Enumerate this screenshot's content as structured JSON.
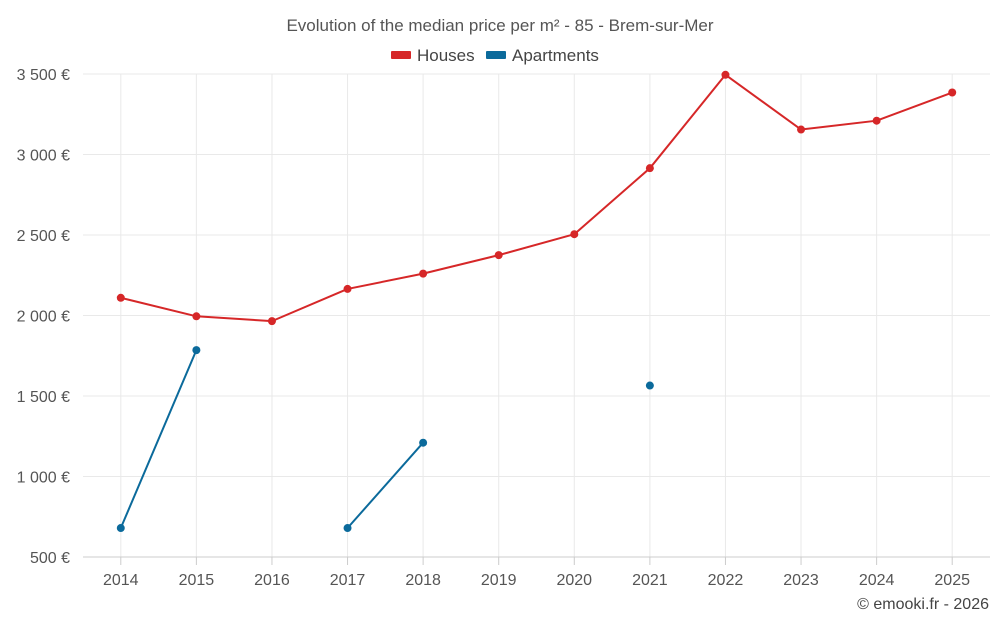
{
  "chart_data": {
    "type": "line",
    "title": "Evolution of the median price per m² - 85 - Brem-sur-Mer",
    "categories": [
      "2014",
      "2015",
      "2016",
      "2017",
      "2018",
      "2019",
      "2020",
      "2021",
      "2022",
      "2023",
      "2024",
      "2025"
    ],
    "series": [
      {
        "name": "Houses",
        "color": "#d62728",
        "values": [
          2110,
          1995,
          1965,
          2165,
          2260,
          2375,
          2505,
          2915,
          3495,
          3155,
          3210,
          3385
        ]
      },
      {
        "name": "Apartments",
        "color": "#0b6a9b",
        "values": [
          680,
          1785,
          null,
          680,
          1210,
          null,
          null,
          1565,
          null,
          null,
          null,
          null
        ]
      }
    ],
    "ylim": [
      500,
      3500
    ],
    "yticks": [
      500,
      1000,
      1500,
      2000,
      2500,
      3000,
      3500
    ],
    "ytick_labels": [
      "500 €",
      "1 000 €",
      "1 500 €",
      "2 000 €",
      "2 500 €",
      "3 000 €",
      "3 500 €"
    ],
    "xlabel": "",
    "ylabel": "",
    "grid": true,
    "legend_position": "top-center"
  },
  "credit": "© emooki.fr - 2026"
}
